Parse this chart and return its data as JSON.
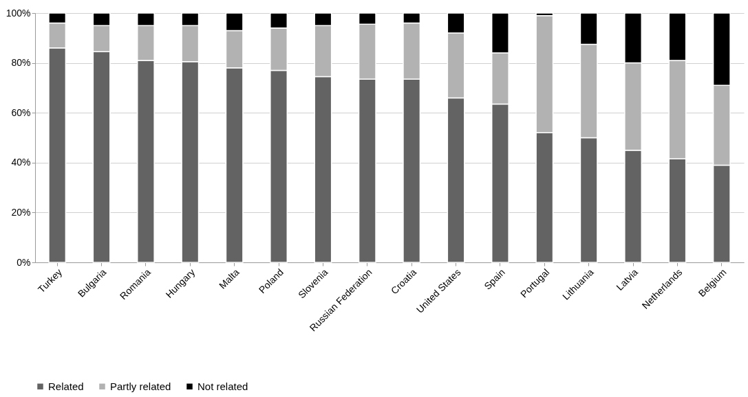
{
  "chart_data": {
    "type": "bar",
    "stacked": true,
    "categories": [
      "Turkey",
      "Bulgaria",
      "Romania",
      "Hungary",
      "Malta",
      "Poland",
      "Slovenia",
      "Russian Federation",
      "Croatia",
      "United States",
      "Spain",
      "Portugal",
      "Lithuania",
      "Latvia",
      "Netherlands",
      "Belgium"
    ],
    "series": [
      {
        "name": "Related",
        "color": "#636363",
        "values": [
          86,
          84.5,
          81,
          80.5,
          78,
          77,
          74.5,
          73.5,
          73.5,
          66,
          63.5,
          52,
          50,
          45,
          41.5,
          39
        ]
      },
      {
        "name": "Partly related",
        "color": "#b2b2b2",
        "values": [
          10,
          10.5,
          14,
          14.5,
          15,
          17,
          20.5,
          22,
          22.5,
          26,
          20.5,
          47,
          37.5,
          35,
          39.5,
          32
        ]
      },
      {
        "name": "Not related",
        "color": "#000000",
        "values": [
          4,
          5,
          5,
          5,
          7,
          6,
          5,
          4.5,
          4,
          8,
          16,
          1,
          12.5,
          20,
          19,
          29
        ]
      }
    ],
    "ylim": [
      0,
      100
    ],
    "yticks": [
      {
        "value": 0,
        "label": "0%"
      },
      {
        "value": 20,
        "label": "20%"
      },
      {
        "value": 40,
        "label": "40%"
      },
      {
        "value": 60,
        "label": "60%"
      },
      {
        "value": 80,
        "label": "80%"
      },
      {
        "value": 100,
        "label": "100%"
      }
    ],
    "grid": "y",
    "legend": "bottom"
  }
}
